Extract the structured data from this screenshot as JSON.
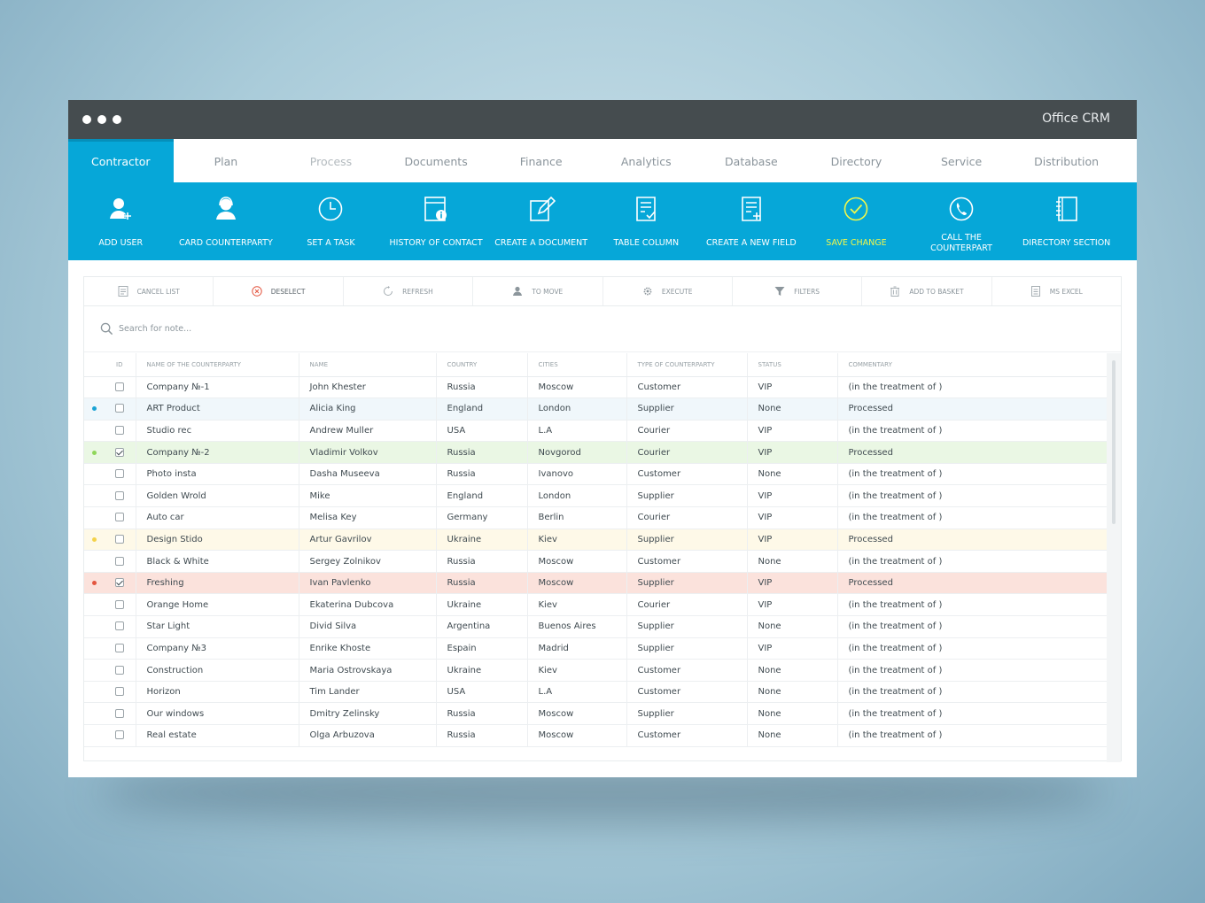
{
  "window": {
    "title": "Office CRM"
  },
  "tabs": [
    {
      "label": "Contractor",
      "state": "active"
    },
    {
      "label": "Plan",
      "state": "normal"
    },
    {
      "label": "Process",
      "state": "dim"
    },
    {
      "label": "Documents",
      "state": "normal"
    },
    {
      "label": "Finance",
      "state": "normal"
    },
    {
      "label": "Analytics",
      "state": "normal"
    },
    {
      "label": "Database",
      "state": "normal"
    },
    {
      "label": "Directory",
      "state": "normal"
    },
    {
      "label": "Service",
      "state": "normal"
    },
    {
      "label": "Distribution",
      "state": "normal"
    }
  ],
  "toolbar": [
    {
      "label": "ADD USER",
      "icon": "add-user-icon"
    },
    {
      "label": "CARD COUNTERPARTY",
      "icon": "user-card-icon"
    },
    {
      "label": "SET A TASK",
      "icon": "clock-icon"
    },
    {
      "label": "HISTORY OF CONTACT",
      "icon": "history-info-icon"
    },
    {
      "label": "CREATE A DOCUMENT",
      "icon": "edit-document-icon"
    },
    {
      "label": "TABLE COLUMN",
      "icon": "checklist-icon"
    },
    {
      "label": "CREATE A NEW FIELD",
      "icon": "new-field-icon"
    },
    {
      "label": "SAVE CHANGE",
      "icon": "check-circle-icon",
      "highlight": true
    },
    {
      "label": "CALL THE COUNTERPART",
      "icon": "phone-icon"
    },
    {
      "label": "DIRECTORY SECTION",
      "icon": "notebook-icon"
    }
  ],
  "actions": [
    {
      "label": "CANCEL LIST",
      "icon": "cancel-list-icon"
    },
    {
      "label": "DESELECT",
      "icon": "deselect-icon"
    },
    {
      "label": "REFRESH",
      "icon": "refresh-icon"
    },
    {
      "label": "TO MOVE",
      "icon": "move-user-icon"
    },
    {
      "label": "EXECUTE",
      "icon": "gear-icon"
    },
    {
      "label": "FILTERS",
      "icon": "filter-icon"
    },
    {
      "label": "ADD TO BASKET",
      "icon": "basket-icon"
    },
    {
      "label": "MS EXCEl",
      "icon": "excel-icon"
    }
  ],
  "search": {
    "placeholder": "Search for note..."
  },
  "colors": {
    "accent": "#06a7d8",
    "highlight": "#f1f74a",
    "marker_blue": "#1aa3d4",
    "marker_green": "#8fd65a",
    "marker_yellow": "#f4d24a",
    "marker_red": "#e3553f"
  },
  "table": {
    "columns": [
      "",
      "ID",
      "NAME OF THE COUNTERPARTY",
      "NAME",
      "COUNTRY",
      "CITIES",
      "TYPE OF COUNTERPARTY",
      "STATUS",
      "COMMENTARY"
    ],
    "rows": [
      {
        "marker": "",
        "checked": false,
        "company": "Company №-1",
        "name": "John Khester",
        "country": "Russia",
        "city": "Moscow",
        "type": "Customer",
        "status": "VIP",
        "comment": "(in the treatment of )"
      },
      {
        "marker": "blue",
        "checked": false,
        "company": "ART Product",
        "name": "Alicia King",
        "country": "England",
        "city": "London",
        "type": "Supplier",
        "status": "None",
        "comment": "Processed"
      },
      {
        "marker": "",
        "checked": false,
        "company": "Studio rec",
        "name": "Andrew Muller",
        "country": "USA",
        "city": "L.A",
        "type": "Courier",
        "status": "VIP",
        "comment": "(in the treatment of )"
      },
      {
        "marker": "green",
        "checked": true,
        "company": "Company №-2",
        "name": "Vladimir Volkov",
        "country": "Russia",
        "city": "Novgorod",
        "type": "Courier",
        "status": "VIP",
        "comment": "Processed"
      },
      {
        "marker": "",
        "checked": false,
        "company": "Photo insta",
        "name": "Dasha Museeva",
        "country": "Russia",
        "city": "Ivanovo",
        "type": "Customer",
        "status": "None",
        "comment": "(in the treatment of )"
      },
      {
        "marker": "",
        "checked": false,
        "company": "Golden Wrold",
        "name": "Mike",
        "country": "England",
        "city": "London",
        "type": "Supplier",
        "status": "VIP",
        "comment": "(in the treatment of )"
      },
      {
        "marker": "",
        "checked": false,
        "company": "Auto car",
        "name": "Melisa Key",
        "country": "Germany",
        "city": "Berlin",
        "type": "Courier",
        "status": "VIP",
        "comment": "(in the treatment of )"
      },
      {
        "marker": "yellow",
        "checked": false,
        "company": "Design Stido",
        "name": "Artur Gavrilov",
        "country": "Ukraine",
        "city": "Kiev",
        "type": "Supplier",
        "status": "VIP",
        "comment": "Processed"
      },
      {
        "marker": "",
        "checked": false,
        "company": "Black & White",
        "name": "Sergey Zolnikov",
        "country": "Russia",
        "city": "Moscow",
        "type": "Customer",
        "status": "None",
        "comment": "(in the treatment of )"
      },
      {
        "marker": "red",
        "checked": true,
        "company": "Freshing",
        "name": "Ivan Pavlenko",
        "country": "Russia",
        "city": "Moscow",
        "type": "Supplier",
        "status": "VIP",
        "comment": "Processed"
      },
      {
        "marker": "",
        "checked": false,
        "company": "Orange Home",
        "name": "Ekaterina Dubcova",
        "country": "Ukraine",
        "city": "Kiev",
        "type": "Courier",
        "status": "VIP",
        "comment": "(in the treatment of )"
      },
      {
        "marker": "",
        "checked": false,
        "company": "Star Light",
        "name": "Divid Silva",
        "country": "Argentina",
        "city": "Buenos Aires",
        "type": "Supplier",
        "status": "None",
        "comment": "(in the treatment of )"
      },
      {
        "marker": "",
        "checked": false,
        "company": "Company №3",
        "name": "Enrike Khoste",
        "country": "Espain",
        "city": "Madrid",
        "type": "Supplier",
        "status": "VIP",
        "comment": "(in the treatment of )"
      },
      {
        "marker": "",
        "checked": false,
        "company": "Construction",
        "name": "Maria Ostrovskaya",
        "country": "Ukraine",
        "city": "Kiev",
        "type": "Customer",
        "status": "None",
        "comment": "(in the treatment of )"
      },
      {
        "marker": "",
        "checked": false,
        "company": "Horizon",
        "name": "Tim Lander",
        "country": "USA",
        "city": "L.A",
        "type": "Customer",
        "status": "None",
        "comment": "(in the treatment of )"
      },
      {
        "marker": "",
        "checked": false,
        "company": "Our windows",
        "name": "Dmitry Zelinsky",
        "country": "Russia",
        "city": "Moscow",
        "type": "Supplier",
        "status": "None",
        "comment": "(in the treatment of )"
      },
      {
        "marker": "",
        "checked": false,
        "company": "Real estate",
        "name": "Olga Arbuzova",
        "country": "Russia",
        "city": "Moscow",
        "type": "Customer",
        "status": "None",
        "comment": "(in the treatment of )"
      }
    ]
  }
}
